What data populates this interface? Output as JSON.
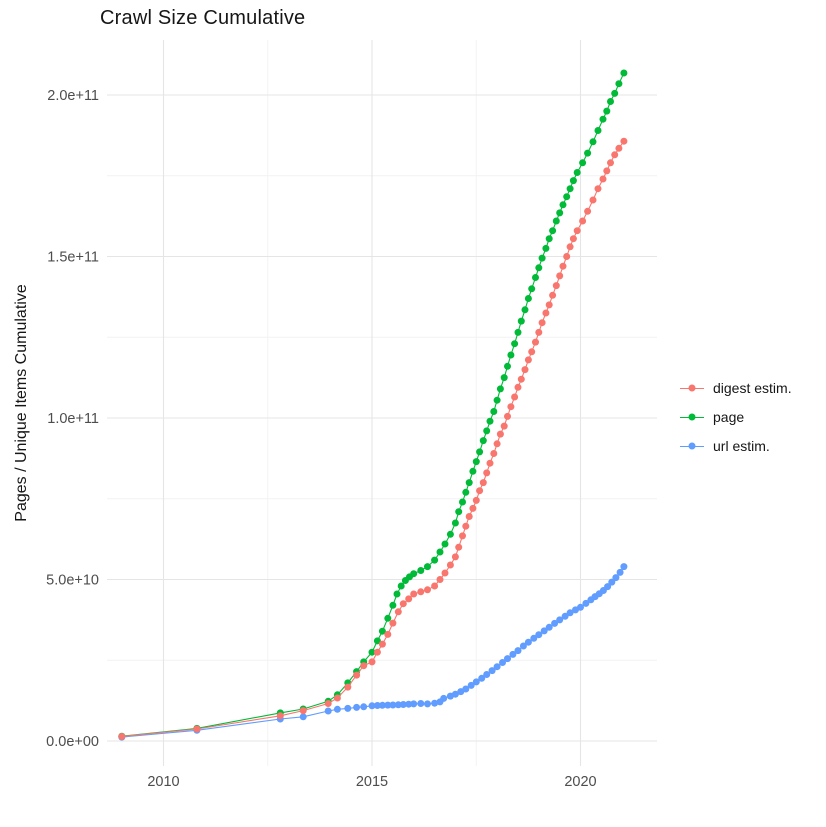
{
  "chart_data": {
    "type": "line",
    "title": "Crawl Size Cumulative",
    "xlabel": "",
    "ylabel": "Pages / Unique Items Cumulative",
    "grid": true,
    "legend_position": "right",
    "x_ticks": [
      {
        "value": 2010,
        "label": "2010"
      },
      {
        "value": 2015,
        "label": "2015"
      },
      {
        "value": 2020,
        "label": "2020"
      }
    ],
    "x_minor_ticks": [
      2012.5,
      2017.5
    ],
    "x_range": [
      2008.65,
      2021.85
    ],
    "y_unit_note": "point values stored in billions (1e9)",
    "y_ticks": [
      {
        "value": 0,
        "label": "0.0e+00"
      },
      {
        "value": 50,
        "label": "5.0e+10"
      },
      {
        "value": 100,
        "label": "1.0e+11"
      },
      {
        "value": 150,
        "label": "1.5e+11"
      },
      {
        "value": 200,
        "label": "2.0e+11"
      }
    ],
    "y_minor_ticks": [
      25,
      75,
      125,
      175
    ],
    "y_range": [
      -8,
      217
    ],
    "draw_order": [
      1,
      2,
      0
    ],
    "series": [
      {
        "name": "digest estim.",
        "color": "#F8766D",
        "points": [
          [
            2009.0,
            1.4
          ],
          [
            2010.8,
            3.7
          ],
          [
            2012.8,
            7.8
          ],
          [
            2013.35,
            9.4
          ],
          [
            2013.95,
            11.6
          ],
          [
            2014.17,
            13.3
          ],
          [
            2014.42,
            16.7
          ],
          [
            2014.63,
            20.4
          ],
          [
            2014.8,
            23.3
          ],
          [
            2015.0,
            24.5
          ],
          [
            2015.13,
            27.5
          ],
          [
            2015.25,
            30
          ],
          [
            2015.38,
            33
          ],
          [
            2015.5,
            36.5
          ],
          [
            2015.63,
            40
          ],
          [
            2015.75,
            42.5
          ],
          [
            2015.88,
            44
          ],
          [
            2016.0,
            45.5
          ],
          [
            2016.17,
            46.2
          ],
          [
            2016.33,
            46.8
          ],
          [
            2016.5,
            48
          ],
          [
            2016.63,
            50
          ],
          [
            2016.75,
            52
          ],
          [
            2016.88,
            54.5
          ],
          [
            2017.0,
            57
          ],
          [
            2017.08,
            60
          ],
          [
            2017.17,
            63.5
          ],
          [
            2017.25,
            66.5
          ],
          [
            2017.33,
            69.5
          ],
          [
            2017.42,
            72
          ],
          [
            2017.5,
            74.5
          ],
          [
            2017.58,
            77.5
          ],
          [
            2017.67,
            80
          ],
          [
            2017.75,
            83
          ],
          [
            2017.83,
            86
          ],
          [
            2017.92,
            89
          ],
          [
            2018.0,
            92
          ],
          [
            2018.08,
            95
          ],
          [
            2018.17,
            97.5
          ],
          [
            2018.25,
            100.5
          ],
          [
            2018.33,
            103.5
          ],
          [
            2018.42,
            106.5
          ],
          [
            2018.5,
            109.5
          ],
          [
            2018.58,
            112
          ],
          [
            2018.67,
            115
          ],
          [
            2018.75,
            118
          ],
          [
            2018.83,
            120.5
          ],
          [
            2018.92,
            123.5
          ],
          [
            2019.0,
            126.5
          ],
          [
            2019.08,
            129.5
          ],
          [
            2019.17,
            132.5
          ],
          [
            2019.25,
            135
          ],
          [
            2019.33,
            138
          ],
          [
            2019.42,
            141
          ],
          [
            2019.5,
            144
          ],
          [
            2019.58,
            147
          ],
          [
            2019.67,
            150
          ],
          [
            2019.75,
            153
          ],
          [
            2019.83,
            155.5
          ],
          [
            2019.92,
            158
          ],
          [
            2020.05,
            161
          ],
          [
            2020.17,
            164
          ],
          [
            2020.3,
            167.5
          ],
          [
            2020.42,
            171
          ],
          [
            2020.54,
            174
          ],
          [
            2020.63,
            176.5
          ],
          [
            2020.72,
            179
          ],
          [
            2020.82,
            181.5
          ],
          [
            2020.92,
            183.5
          ],
          [
            2021.04,
            185.7
          ]
        ]
      },
      {
        "name": "page",
        "color": "#00BA38",
        "points": [
          [
            2009.0,
            1.5
          ],
          [
            2010.8,
            3.9
          ],
          [
            2012.8,
            8.7
          ],
          [
            2013.35,
            9.9
          ],
          [
            2013.95,
            12.3
          ],
          [
            2014.17,
            14.3
          ],
          [
            2014.42,
            18
          ],
          [
            2014.63,
            21.5
          ],
          [
            2014.8,
            24.5
          ],
          [
            2015.0,
            27.5
          ],
          [
            2015.13,
            31
          ],
          [
            2015.25,
            34
          ],
          [
            2015.38,
            38
          ],
          [
            2015.5,
            42
          ],
          [
            2015.6,
            45.5
          ],
          [
            2015.7,
            48
          ],
          [
            2015.8,
            49.7
          ],
          [
            2015.9,
            50.8
          ],
          [
            2016.0,
            51.8
          ],
          [
            2016.17,
            52.8
          ],
          [
            2016.33,
            54
          ],
          [
            2016.5,
            56
          ],
          [
            2016.63,
            58.5
          ],
          [
            2016.75,
            61
          ],
          [
            2016.88,
            64
          ],
          [
            2017.0,
            67.5
          ],
          [
            2017.08,
            71
          ],
          [
            2017.17,
            74
          ],
          [
            2017.25,
            77
          ],
          [
            2017.33,
            80
          ],
          [
            2017.42,
            83.5
          ],
          [
            2017.5,
            86.5
          ],
          [
            2017.58,
            89.5
          ],
          [
            2017.67,
            93
          ],
          [
            2017.75,
            96
          ],
          [
            2017.83,
            99
          ],
          [
            2017.92,
            102
          ],
          [
            2018.0,
            105.5
          ],
          [
            2018.08,
            109
          ],
          [
            2018.17,
            112.5
          ],
          [
            2018.25,
            116
          ],
          [
            2018.33,
            119.5
          ],
          [
            2018.42,
            123
          ],
          [
            2018.5,
            126.5
          ],
          [
            2018.58,
            130
          ],
          [
            2018.67,
            133.5
          ],
          [
            2018.75,
            137
          ],
          [
            2018.83,
            140
          ],
          [
            2018.92,
            143.5
          ],
          [
            2019.0,
            146.5
          ],
          [
            2019.08,
            149.5
          ],
          [
            2019.17,
            152.5
          ],
          [
            2019.25,
            155.5
          ],
          [
            2019.33,
            158
          ],
          [
            2019.42,
            161
          ],
          [
            2019.5,
            163.5
          ],
          [
            2019.58,
            166
          ],
          [
            2019.67,
            168.5
          ],
          [
            2019.75,
            171
          ],
          [
            2019.83,
            173.5
          ],
          [
            2019.92,
            176
          ],
          [
            2020.05,
            179
          ],
          [
            2020.17,
            182
          ],
          [
            2020.3,
            185.5
          ],
          [
            2020.42,
            189
          ],
          [
            2020.54,
            192.5
          ],
          [
            2020.63,
            195
          ],
          [
            2020.72,
            198
          ],
          [
            2020.82,
            200.5
          ],
          [
            2020.92,
            203.5
          ],
          [
            2021.04,
            206.8
          ]
        ]
      },
      {
        "name": "url estim.",
        "color": "#619CFF",
        "points": [
          [
            2009.0,
            1.2
          ],
          [
            2010.8,
            3.3
          ],
          [
            2012.8,
            6.8
          ],
          [
            2013.35,
            7.5
          ],
          [
            2013.95,
            9.3
          ],
          [
            2014.17,
            9.8
          ],
          [
            2014.42,
            10.1
          ],
          [
            2014.63,
            10.4
          ],
          [
            2014.8,
            10.6
          ],
          [
            2015.0,
            10.9
          ],
          [
            2015.13,
            11.0
          ],
          [
            2015.25,
            11.05
          ],
          [
            2015.38,
            11.1
          ],
          [
            2015.5,
            11.15
          ],
          [
            2015.63,
            11.2
          ],
          [
            2015.75,
            11.3
          ],
          [
            2015.88,
            11.4
          ],
          [
            2016.0,
            11.5
          ],
          [
            2016.17,
            11.6
          ],
          [
            2016.33,
            11.5
          ],
          [
            2016.5,
            11.7
          ],
          [
            2016.63,
            12.1
          ],
          [
            2016.72,
            13.2
          ],
          [
            2016.88,
            13.9
          ],
          [
            2017.0,
            14.5
          ],
          [
            2017.13,
            15.3
          ],
          [
            2017.25,
            16.1
          ],
          [
            2017.38,
            17.2
          ],
          [
            2017.5,
            18.3
          ],
          [
            2017.63,
            19.4
          ],
          [
            2017.75,
            20.6
          ],
          [
            2017.88,
            21.8
          ],
          [
            2018.0,
            23
          ],
          [
            2018.13,
            24.3
          ],
          [
            2018.25,
            25.5
          ],
          [
            2018.38,
            26.8
          ],
          [
            2018.5,
            28
          ],
          [
            2018.63,
            29.4
          ],
          [
            2018.75,
            30.6
          ],
          [
            2018.88,
            31.8
          ],
          [
            2019.0,
            32.9
          ],
          [
            2019.13,
            34.1
          ],
          [
            2019.25,
            35.2
          ],
          [
            2019.38,
            36.4
          ],
          [
            2019.5,
            37.5
          ],
          [
            2019.63,
            38.6
          ],
          [
            2019.75,
            39.7
          ],
          [
            2019.88,
            40.6
          ],
          [
            2020.0,
            41.4
          ],
          [
            2020.13,
            42.6
          ],
          [
            2020.25,
            43.7
          ],
          [
            2020.35,
            44.7
          ],
          [
            2020.45,
            45.6
          ],
          [
            2020.55,
            46.6
          ],
          [
            2020.65,
            47.8
          ],
          [
            2020.75,
            49.2
          ],
          [
            2020.85,
            50.6
          ],
          [
            2020.95,
            52.2
          ],
          [
            2021.04,
            54
          ]
        ]
      }
    ]
  },
  "colors": {
    "background": "#ffffff",
    "grid_major": "#e5e5e5",
    "grid_minor": "#f2f2f2",
    "axis_text": "#4d4d4d",
    "title_text": "#161616"
  }
}
